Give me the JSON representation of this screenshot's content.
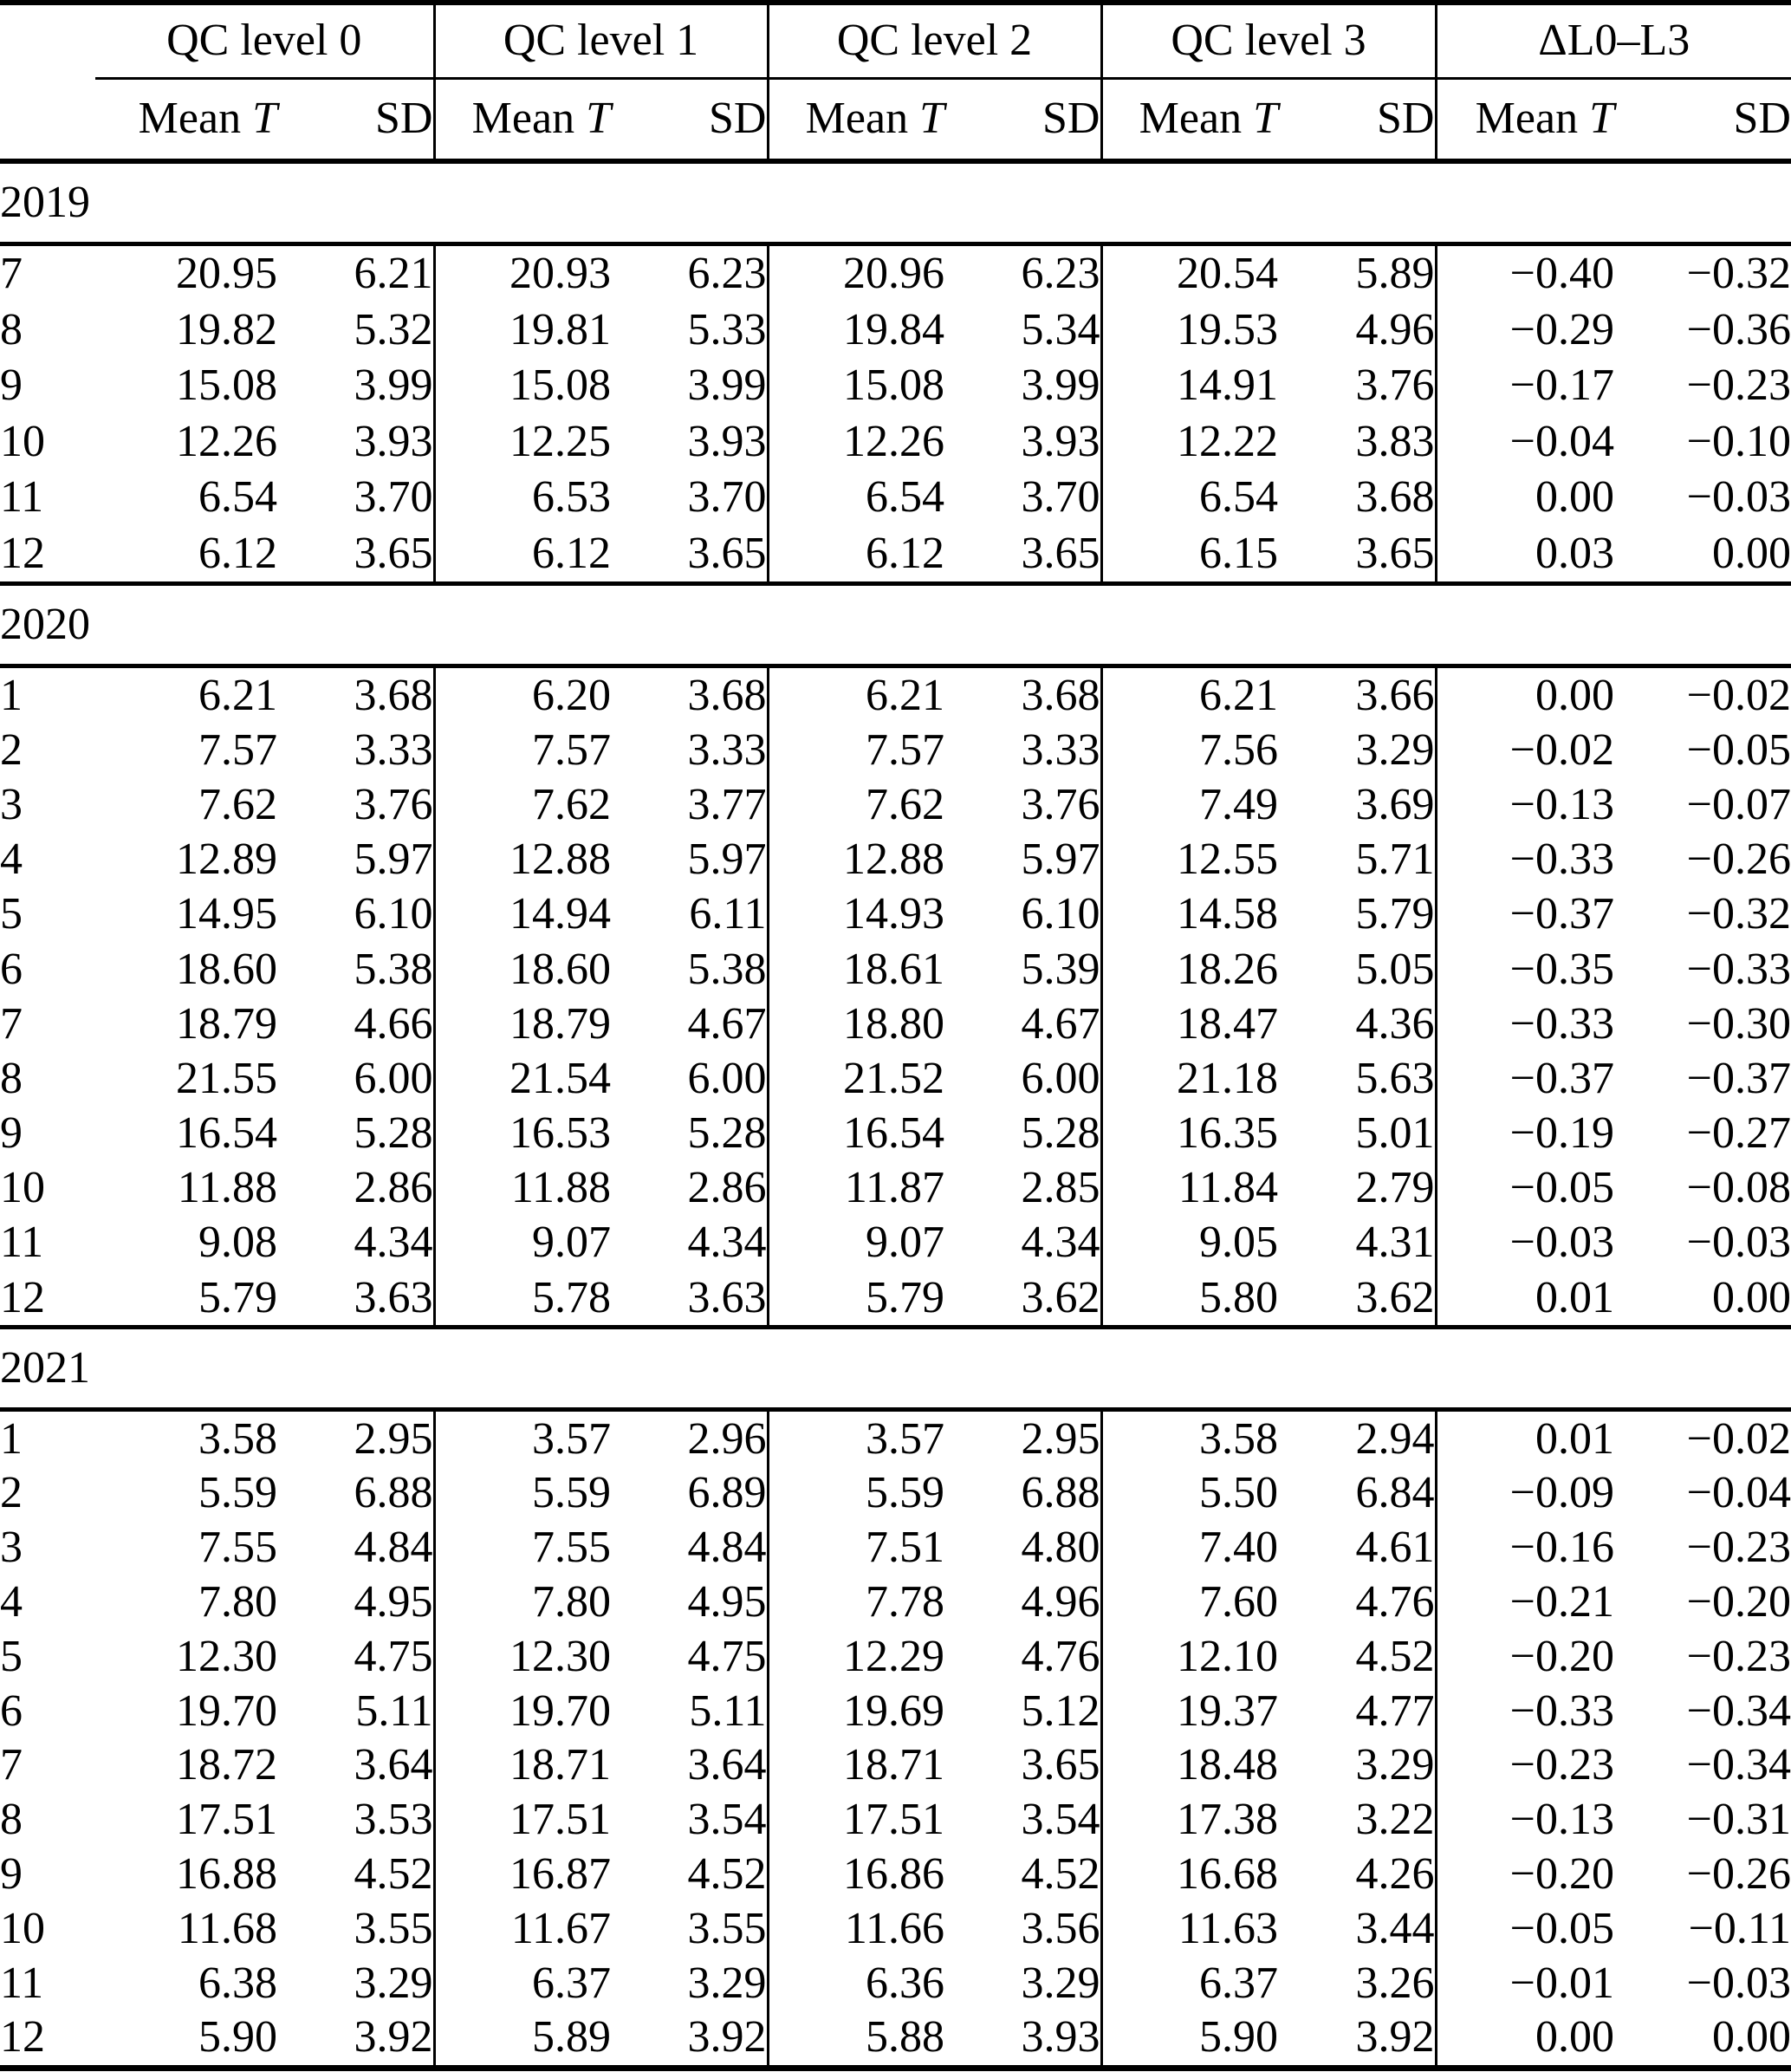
{
  "page": {
    "background": "#ffffff",
    "text_color": "#000000",
    "rule_color": "#000000"
  },
  "table": {
    "groups": [
      {
        "label": "QC level 0"
      },
      {
        "label": "QC level 1"
      },
      {
        "label": "QC level 2"
      },
      {
        "label": "QC level 3"
      },
      {
        "label": "ΔL0–L3"
      }
    ],
    "subheader": {
      "mean_label": "Mean",
      "mean_symbol": "T",
      "sd_label": "SD"
    },
    "sections": [
      {
        "year": "2019",
        "rows": [
          {
            "month": "7",
            "values": [
              "20.95",
              "6.21",
              "20.93",
              "6.23",
              "20.96",
              "6.23",
              "20.54",
              "5.89",
              "−0.40",
              "−0.32"
            ]
          },
          {
            "month": "8",
            "values": [
              "19.82",
              "5.32",
              "19.81",
              "5.33",
              "19.84",
              "5.34",
              "19.53",
              "4.96",
              "−0.29",
              "−0.36"
            ]
          },
          {
            "month": "9",
            "values": [
              "15.08",
              "3.99",
              "15.08",
              "3.99",
              "15.08",
              "3.99",
              "14.91",
              "3.76",
              "−0.17",
              "−0.23"
            ]
          },
          {
            "month": "10",
            "values": [
              "12.26",
              "3.93",
              "12.25",
              "3.93",
              "12.26",
              "3.93",
              "12.22",
              "3.83",
              "−0.04",
              "−0.10"
            ]
          },
          {
            "month": "11",
            "values": [
              "6.54",
              "3.70",
              "6.53",
              "3.70",
              "6.54",
              "3.70",
              "6.54",
              "3.68",
              "0.00",
              "−0.03"
            ]
          },
          {
            "month": "12",
            "values": [
              "6.12",
              "3.65",
              "6.12",
              "3.65",
              "6.12",
              "3.65",
              "6.15",
              "3.65",
              "0.03",
              "0.00"
            ]
          }
        ]
      },
      {
        "year": "2020",
        "rows": [
          {
            "month": "1",
            "values": [
              "6.21",
              "3.68",
              "6.20",
              "3.68",
              "6.21",
              "3.68",
              "6.21",
              "3.66",
              "0.00",
              "−0.02"
            ]
          },
          {
            "month": "2",
            "values": [
              "7.57",
              "3.33",
              "7.57",
              "3.33",
              "7.57",
              "3.33",
              "7.56",
              "3.29",
              "−0.02",
              "−0.05"
            ]
          },
          {
            "month": "3",
            "values": [
              "7.62",
              "3.76",
              "7.62",
              "3.77",
              "7.62",
              "3.76",
              "7.49",
              "3.69",
              "−0.13",
              "−0.07"
            ]
          },
          {
            "month": "4",
            "values": [
              "12.89",
              "5.97",
              "12.88",
              "5.97",
              "12.88",
              "5.97",
              "12.55",
              "5.71",
              "−0.33",
              "−0.26"
            ]
          },
          {
            "month": "5",
            "values": [
              "14.95",
              "6.10",
              "14.94",
              "6.11",
              "14.93",
              "6.10",
              "14.58",
              "5.79",
              "−0.37",
              "−0.32"
            ]
          },
          {
            "month": "6",
            "values": [
              "18.60",
              "5.38",
              "18.60",
              "5.38",
              "18.61",
              "5.39",
              "18.26",
              "5.05",
              "−0.35",
              "−0.33"
            ]
          },
          {
            "month": "7",
            "values": [
              "18.79",
              "4.66",
              "18.79",
              "4.67",
              "18.80",
              "4.67",
              "18.47",
              "4.36",
              "−0.33",
              "−0.30"
            ]
          },
          {
            "month": "8",
            "values": [
              "21.55",
              "6.00",
              "21.54",
              "6.00",
              "21.52",
              "6.00",
              "21.18",
              "5.63",
              "−0.37",
              "−0.37"
            ]
          },
          {
            "month": "9",
            "values": [
              "16.54",
              "5.28",
              "16.53",
              "5.28",
              "16.54",
              "5.28",
              "16.35",
              "5.01",
              "−0.19",
              "−0.27"
            ]
          },
          {
            "month": "10",
            "values": [
              "11.88",
              "2.86",
              "11.88",
              "2.86",
              "11.87",
              "2.85",
              "11.84",
              "2.79",
              "−0.05",
              "−0.08"
            ]
          },
          {
            "month": "11",
            "values": [
              "9.08",
              "4.34",
              "9.07",
              "4.34",
              "9.07",
              "4.34",
              "9.05",
              "4.31",
              "−0.03",
              "−0.03"
            ]
          },
          {
            "month": "12",
            "values": [
              "5.79",
              "3.63",
              "5.78",
              "3.63",
              "5.79",
              "3.62",
              "5.80",
              "3.62",
              "0.01",
              "0.00"
            ]
          }
        ]
      },
      {
        "year": "2021",
        "rows": [
          {
            "month": "1",
            "values": [
              "3.58",
              "2.95",
              "3.57",
              "2.96",
              "3.57",
              "2.95",
              "3.58",
              "2.94",
              "0.01",
              "−0.02"
            ]
          },
          {
            "month": "2",
            "values": [
              "5.59",
              "6.88",
              "5.59",
              "6.89",
              "5.59",
              "6.88",
              "5.50",
              "6.84",
              "−0.09",
              "−0.04"
            ]
          },
          {
            "month": "3",
            "values": [
              "7.55",
              "4.84",
              "7.55",
              "4.84",
              "7.51",
              "4.80",
              "7.40",
              "4.61",
              "−0.16",
              "−0.23"
            ]
          },
          {
            "month": "4",
            "values": [
              "7.80",
              "4.95",
              "7.80",
              "4.95",
              "7.78",
              "4.96",
              "7.60",
              "4.76",
              "−0.21",
              "−0.20"
            ]
          },
          {
            "month": "5",
            "values": [
              "12.30",
              "4.75",
              "12.30",
              "4.75",
              "12.29",
              "4.76",
              "12.10",
              "4.52",
              "−0.20",
              "−0.23"
            ]
          },
          {
            "month": "6",
            "values": [
              "19.70",
              "5.11",
              "19.70",
              "5.11",
              "19.69",
              "5.12",
              "19.37",
              "4.77",
              "−0.33",
              "−0.34"
            ]
          },
          {
            "month": "7",
            "values": [
              "18.72",
              "3.64",
              "18.71",
              "3.64",
              "18.71",
              "3.65",
              "18.48",
              "3.29",
              "−0.23",
              "−0.34"
            ]
          },
          {
            "month": "8",
            "values": [
              "17.51",
              "3.53",
              "17.51",
              "3.54",
              "17.51",
              "3.54",
              "17.38",
              "3.22",
              "−0.13",
              "−0.31"
            ]
          },
          {
            "month": "9",
            "values": [
              "16.88",
              "4.52",
              "16.87",
              "4.52",
              "16.86",
              "4.52",
              "16.68",
              "4.26",
              "−0.20",
              "−0.26"
            ]
          },
          {
            "month": "10",
            "values": [
              "11.68",
              "3.55",
              "11.67",
              "3.55",
              "11.66",
              "3.56",
              "11.63",
              "3.44",
              "−0.05",
              "−0.11"
            ]
          },
          {
            "month": "11",
            "values": [
              "6.38",
              "3.29",
              "6.37",
              "3.29",
              "6.36",
              "3.29",
              "6.37",
              "3.26",
              "−0.01",
              "−0.03"
            ]
          },
          {
            "month": "12",
            "values": [
              "5.90",
              "3.92",
              "5.89",
              "3.92",
              "5.88",
              "3.93",
              "5.90",
              "3.92",
              "0.00",
              "0.00"
            ]
          }
        ]
      }
    ]
  }
}
